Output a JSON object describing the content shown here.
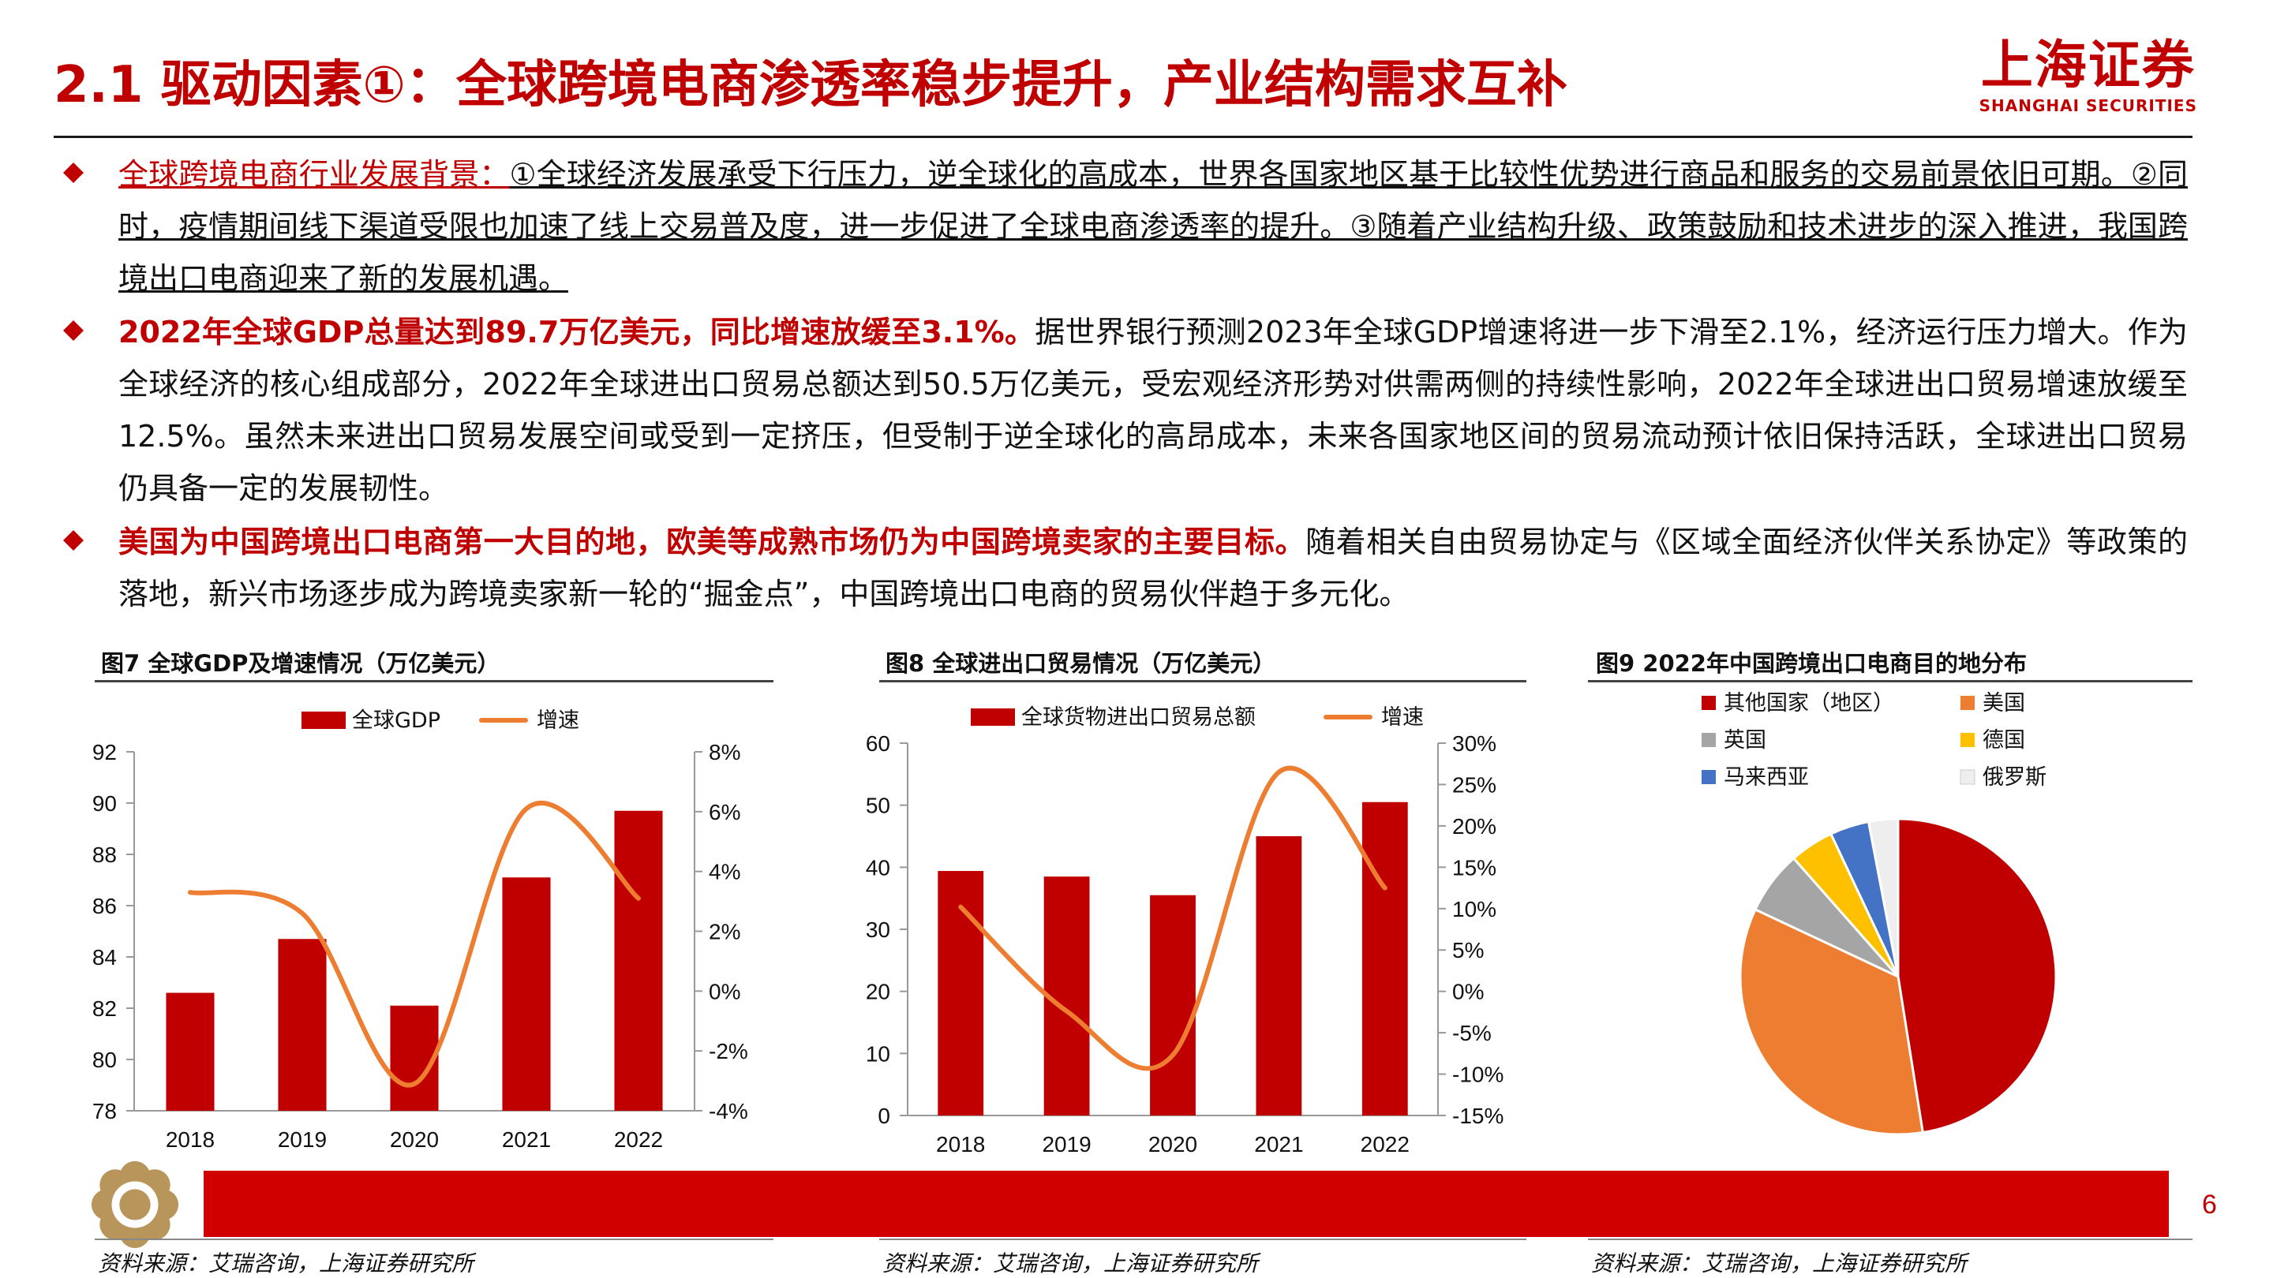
{
  "header": {
    "title": "2.1 驱动因素①：全球跨境电商渗透率稳步提升，产业结构需求互补",
    "logo_cn": "上海证券",
    "logo_en": "SHANGHAI SECURITIES"
  },
  "bullets": [
    {
      "lead": "全球跨境电商行业发展背景：",
      "text": "①全球经济发展承受下行压力，逆全球化的高成本，世界各国家地区基于比较性优势进行商品和服务的交易前景依旧可期。②同时，疫情期间线下渠道受限也加速了线上交易普及度，进一步促进了全球电商渗透率的提升。③随着产业结构升级、政策鼓励和技术进步的深入推进，我国跨境出口电商迎来了新的发展机遇。"
    },
    {
      "lead": "2022年全球GDP总量达到89.7万亿美元，同比增速放缓至3.1%。",
      "text": "据世界银行预测2023年全球GDP增速将进一步下滑至2.1%，经济运行压力增大。作为全球经济的核心组成部分，2022年全球进出口贸易总额达到50.5万亿美元，受宏观经济形势对供需两侧的持续性影响，2022年全球进出口贸易增速放缓至12.5%。虽然未来进出口贸易发展空间或受到一定挤压，但受制于逆全球化的高昂成本，未来各国家地区间的贸易流动预计依旧保持活跃，全球进出口贸易仍具备一定的发展韧性。"
    },
    {
      "lead": "美国为中国跨境出口电商第一大目的地，欧美等成熟市场仍为中国跨境卖家的主要目标。",
      "text": "随着相关自由贸易协定与《区域全面经济伙伴关系协定》等政策的落地，新兴市场逐步成为跨境卖家新一轮的“掘金点”，中国跨境出口电商的贸易伙伴趋于多元化。"
    }
  ],
  "figures": {
    "fig7_caption": "图7  全球GDP及增速情况（万亿美元）",
    "fig8_caption": "图8  全球进出口贸易情况（万亿美元）",
    "fig9_caption": "图9  2022年中国跨境出口电商目的地分布",
    "source": "资料来源：艾瑞咨询，上海证券研究所"
  },
  "footer": {
    "page_number": "6"
  },
  "colors": {
    "brand_red": "#c00000",
    "bar_red": "#c00000",
    "line_orange": "#ed7d31"
  },
  "chart_data": [
    {
      "type": "bar",
      "title": "图7  全球GDP及增速情况（万亿美元）",
      "categories": [
        "2018",
        "2019",
        "2020",
        "2021",
        "2022"
      ],
      "series": [
        {
          "name": "全球GDP",
          "kind": "bar",
          "axis": "left",
          "values": [
            82.6,
            84.7,
            82.1,
            87.1,
            89.7
          ]
        },
        {
          "name": "增速",
          "kind": "line",
          "axis": "right",
          "values": [
            3.3,
            2.6,
            -3.1,
            6.1,
            3.1
          ]
        }
      ],
      "ylim": [
        78,
        92
      ],
      "yticks": [
        78,
        80,
        82,
        84,
        86,
        88,
        90,
        92
      ],
      "y2lim": [
        -4,
        8
      ],
      "y2ticks": [
        "-4%",
        "-2%",
        "0%",
        "2%",
        "4%",
        "6%",
        "8%"
      ],
      "legend": "top"
    },
    {
      "type": "bar",
      "title": "图8  全球进出口贸易情况（万亿美元）",
      "categories": [
        "2018",
        "2019",
        "2020",
        "2021",
        "2022"
      ],
      "series": [
        {
          "name": "全球货物进出口贸易总额",
          "kind": "bar",
          "axis": "left",
          "values": [
            39.4,
            38.5,
            35.5,
            45.0,
            50.5
          ]
        },
        {
          "name": "增速",
          "kind": "line",
          "axis": "right",
          "values": [
            10.2,
            -2.4,
            -7.7,
            26.5,
            12.5
          ]
        }
      ],
      "ylim": [
        0,
        60
      ],
      "yticks": [
        0,
        10,
        20,
        30,
        40,
        50,
        60
      ],
      "y2lim": [
        -15,
        30
      ],
      "y2ticks": [
        "-15%",
        "-10%",
        "-5%",
        "0%",
        "5%",
        "10%",
        "15%",
        "20%",
        "25%",
        "30%"
      ],
      "legend": "top"
    },
    {
      "type": "pie",
      "title": "图9  2022年中国跨境出口电商目的地分布",
      "labels": [
        "其他国家（地区）",
        "美国",
        "英国",
        "德国",
        "马来西亚",
        "俄罗斯"
      ],
      "values": [
        47.5,
        34.5,
        6.5,
        4.5,
        4.0,
        3.0
      ],
      "colors": [
        "#c00000",
        "#ed7d31",
        "#a5a5a5",
        "#ffc000",
        "#4472c4",
        "#eeeeee"
      ],
      "legend": "top"
    }
  ]
}
